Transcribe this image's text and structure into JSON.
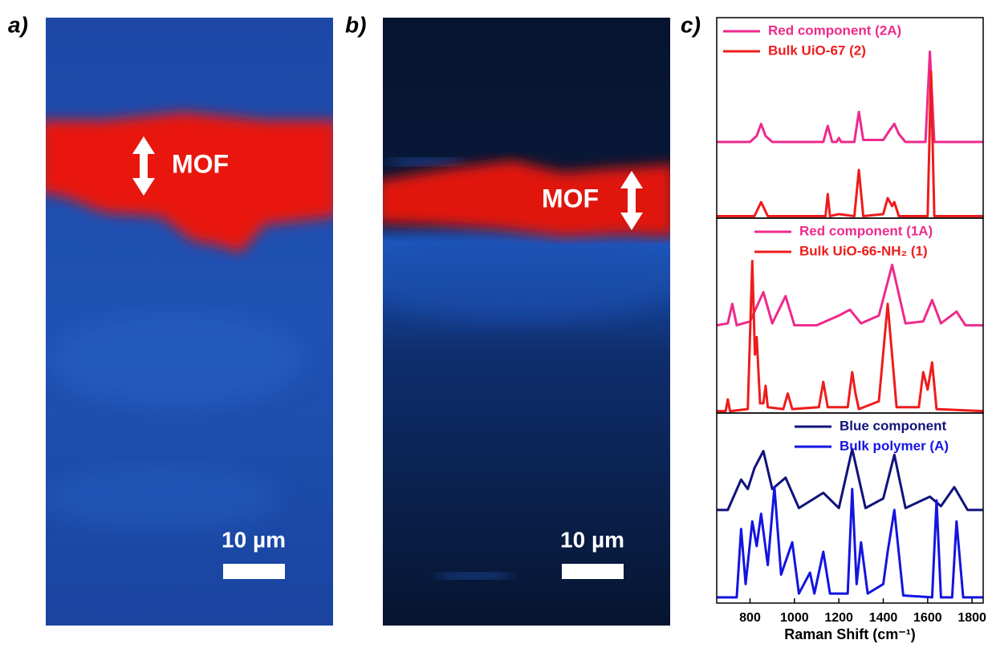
{
  "panels": [
    {
      "label": "a)",
      "annotation": "MOF",
      "scale_bar": "10 µm"
    },
    {
      "label": "b)",
      "annotation": "MOF",
      "scale_bar": "10 µm"
    },
    {
      "label": "c)"
    }
  ],
  "chart_data": [
    {
      "type": "line",
      "xlim": [
        650,
        1850
      ],
      "ylim": [
        0,
        1
      ],
      "legend": "upper left",
      "series": [
        {
          "name": "Red component (2A)",
          "color": "#ee2a8c",
          "x": [
            650,
            800,
            830,
            850,
            870,
            900,
            1000,
            1130,
            1150,
            1170,
            1190,
            1200,
            1210,
            1270,
            1290,
            1310,
            1400,
            1430,
            1450,
            1470,
            1500,
            1590,
            1610,
            1630,
            1700,
            1850
          ],
          "values": [
            0.38,
            0.38,
            0.41,
            0.47,
            0.41,
            0.38,
            0.38,
            0.38,
            0.46,
            0.38,
            0.38,
            0.4,
            0.38,
            0.38,
            0.53,
            0.39,
            0.39,
            0.44,
            0.47,
            0.42,
            0.38,
            0.38,
            0.83,
            0.38,
            0.38,
            0.38
          ]
        },
        {
          "name": "Bulk UiO-67 (2)",
          "color": "#ee1c1c",
          "x": [
            650,
            820,
            850,
            880,
            1000,
            1140,
            1150,
            1160,
            1200,
            1270,
            1290,
            1310,
            1400,
            1420,
            1440,
            1450,
            1470,
            1600,
            1615,
            1630,
            1850
          ],
          "values": [
            0.01,
            0.01,
            0.08,
            0.01,
            0.01,
            0.01,
            0.12,
            0.01,
            0.02,
            0.01,
            0.24,
            0.01,
            0.02,
            0.1,
            0.06,
            0.08,
            0.01,
            0.01,
            0.73,
            0.01,
            0.01
          ]
        }
      ]
    },
    {
      "type": "line",
      "xlim": [
        650,
        1850
      ],
      "ylim": [
        0,
        1
      ],
      "legend": "upper right",
      "series": [
        {
          "name": "Red component (1A)",
          "color": "#ee2a8c",
          "x": [
            650,
            700,
            720,
            740,
            800,
            860,
            900,
            960,
            1000,
            1100,
            1200,
            1250,
            1300,
            1380,
            1440,
            1500,
            1580,
            1620,
            1660,
            1730,
            1770,
            1850
          ],
          "values": [
            0.45,
            0.46,
            0.56,
            0.45,
            0.47,
            0.62,
            0.46,
            0.6,
            0.45,
            0.45,
            0.5,
            0.53,
            0.46,
            0.5,
            0.76,
            0.46,
            0.47,
            0.58,
            0.46,
            0.52,
            0.45,
            0.45
          ]
        },
        {
          "name": "Bulk UiO-66-NH₂ (1)",
          "color": "#ee1c1c",
          "x": [
            650,
            690,
            700,
            710,
            790,
            810,
            822,
            830,
            845,
            860,
            870,
            880,
            950,
            970,
            990,
            1110,
            1130,
            1150,
            1240,
            1260,
            1275,
            1290,
            1380,
            1420,
            1460,
            1560,
            1580,
            1600,
            1620,
            1640,
            1850
          ],
          "values": [
            0.01,
            0.01,
            0.07,
            0.01,
            0.02,
            0.78,
            0.3,
            0.39,
            0.05,
            0.05,
            0.14,
            0.03,
            0.02,
            0.1,
            0.02,
            0.03,
            0.16,
            0.03,
            0.03,
            0.21,
            0.1,
            0.02,
            0.06,
            0.56,
            0.03,
            0.03,
            0.21,
            0.12,
            0.26,
            0.02,
            0.01
          ]
        }
      ]
    },
    {
      "type": "line",
      "xlim": [
        650,
        1850
      ],
      "ylim": [
        0,
        1
      ],
      "legend": "upper right",
      "xticks": [
        800,
        1000,
        1200,
        1400,
        1600,
        1800
      ],
      "x_label": "Raman Shift (cm⁻¹)",
      "series": [
        {
          "name": "Blue component",
          "color": "#10137a",
          "x": [
            650,
            700,
            760,
            790,
            820,
            860,
            900,
            960,
            1020,
            1130,
            1200,
            1260,
            1320,
            1400,
            1450,
            1500,
            1610,
            1660,
            1720,
            1780,
            1850
          ],
          "values": [
            0.49,
            0.49,
            0.65,
            0.6,
            0.71,
            0.8,
            0.6,
            0.66,
            0.5,
            0.58,
            0.5,
            0.81,
            0.5,
            0.55,
            0.78,
            0.5,
            0.56,
            0.51,
            0.61,
            0.49,
            0.49
          ]
        },
        {
          "name": "Bulk polymer (A)",
          "color": "#1414e0",
          "x": [
            650,
            740,
            760,
            780,
            810,
            830,
            850,
            880,
            910,
            940,
            990,
            1020,
            1070,
            1090,
            1130,
            1160,
            1240,
            1260,
            1280,
            1300,
            1330,
            1400,
            1420,
            1450,
            1490,
            1620,
            1640,
            1660,
            1710,
            1730,
            1760,
            1850
          ],
          "values": [
            0.03,
            0.03,
            0.39,
            0.1,
            0.43,
            0.3,
            0.47,
            0.2,
            0.61,
            0.15,
            0.32,
            0.05,
            0.16,
            0.05,
            0.27,
            0.05,
            0.05,
            0.6,
            0.1,
            0.32,
            0.05,
            0.1,
            0.27,
            0.49,
            0.04,
            0.03,
            0.54,
            0.03,
            0.03,
            0.43,
            0.03,
            0.03
          ]
        }
      ]
    }
  ]
}
